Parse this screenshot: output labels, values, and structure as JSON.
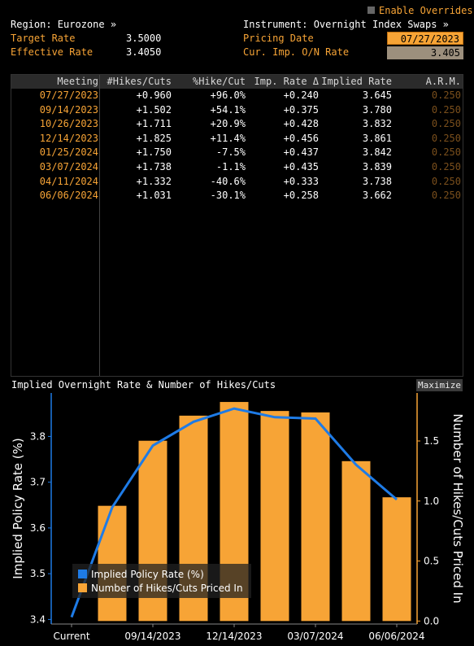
{
  "header": {
    "enable_overrides": "Enable Overrides",
    "region_label": "Region: Eurozone »",
    "instrument_label": "Instrument: Overnight Index Swaps »",
    "target_rate_label": "Target Rate",
    "target_rate_value": "3.5000",
    "effective_rate_label": "Effective Rate",
    "effective_rate_value": "3.4050",
    "pricing_date_label": "Pricing Date",
    "pricing_date_value": "07/27/2023",
    "cur_imp_label": "Cur. Imp. O/N Rate",
    "cur_imp_value": "3.405"
  },
  "table": {
    "columns": [
      "Meeting",
      "#Hikes/Cuts",
      "%Hike/Cut",
      "Imp. Rate Δ",
      "Implied Rate",
      "A.R.M."
    ],
    "rows": [
      {
        "meeting": "07/27/2023",
        "hikes": "+0.960",
        "pct": "+96.0%",
        "delta": "+0.240",
        "implied": "3.645",
        "arm": "0.250"
      },
      {
        "meeting": "09/14/2023",
        "hikes": "+1.502",
        "pct": "+54.1%",
        "delta": "+0.375",
        "implied": "3.780",
        "arm": "0.250"
      },
      {
        "meeting": "10/26/2023",
        "hikes": "+1.711",
        "pct": "+20.9%",
        "delta": "+0.428",
        "implied": "3.832",
        "arm": "0.250"
      },
      {
        "meeting": "12/14/2023",
        "hikes": "+1.825",
        "pct": "+11.4%",
        "delta": "+0.456",
        "implied": "3.861",
        "arm": "0.250"
      },
      {
        "meeting": "01/25/2024",
        "hikes": "+1.750",
        "pct": "-7.5%",
        "delta": "+0.437",
        "implied": "3.842",
        "arm": "0.250"
      },
      {
        "meeting": "03/07/2024",
        "hikes": "+1.738",
        "pct": "-1.1%",
        "delta": "+0.435",
        "implied": "3.839",
        "arm": "0.250"
      },
      {
        "meeting": "04/11/2024",
        "hikes": "+1.332",
        "pct": "-40.6%",
        "delta": "+0.333",
        "implied": "3.738",
        "arm": "0.250"
      },
      {
        "meeting": "06/06/2024",
        "hikes": "+1.031",
        "pct": "-30.1%",
        "delta": "+0.258",
        "implied": "3.662",
        "arm": "0.250"
      }
    ]
  },
  "chart_title": "Implied Overnight Rate & Number of Hikes/Cuts",
  "maximize_label": "Maximize",
  "chart_data": {
    "type": "bar",
    "title": "Implied Overnight Rate & Number of Hikes/Cuts",
    "categories": [
      "Current",
      "07/27/2023",
      "09/14/2023",
      "10/26/2023",
      "12/14/2023",
      "01/25/2024",
      "03/07/2024",
      "04/11/2024",
      "06/06/2024"
    ],
    "x_tick_labels": [
      "Current",
      "09/14/2023",
      "12/14/2023",
      "03/07/2024",
      "06/06/2024"
    ],
    "x_tick_categories": [
      "Current",
      "09/14/2023",
      "12/14/2023",
      "03/07/2024",
      "06/06/2024"
    ],
    "ylabel_left": "Implied Policy Rate (%)",
    "ylabel_right": "Number of Hikes/Cuts Priced In",
    "ylim_left": [
      3.39,
      3.895
    ],
    "yticks_left": [
      "3.4",
      "3.5",
      "3.6",
      "3.7",
      "3.8"
    ],
    "ylim_right": [
      -0.025,
      1.9
    ],
    "yticks_right": [
      "0.0",
      "0.5",
      "1.0",
      "1.5"
    ],
    "series": [
      {
        "name": "Implied Policy Rate (%)",
        "type": "line",
        "axis": "left",
        "color": "#1e7be6",
        "values": [
          3.405,
          3.645,
          3.78,
          3.832,
          3.861,
          3.842,
          3.839,
          3.738,
          3.662
        ]
      },
      {
        "name": "Number of Hikes/Cuts Priced In",
        "type": "bar",
        "axis": "right",
        "color": "#f7a436",
        "values": [
          null,
          0.96,
          1.502,
          1.711,
          1.825,
          1.75,
          1.738,
          1.332,
          1.031
        ]
      }
    ],
    "legend_position": "bottom-left",
    "grid": false
  }
}
